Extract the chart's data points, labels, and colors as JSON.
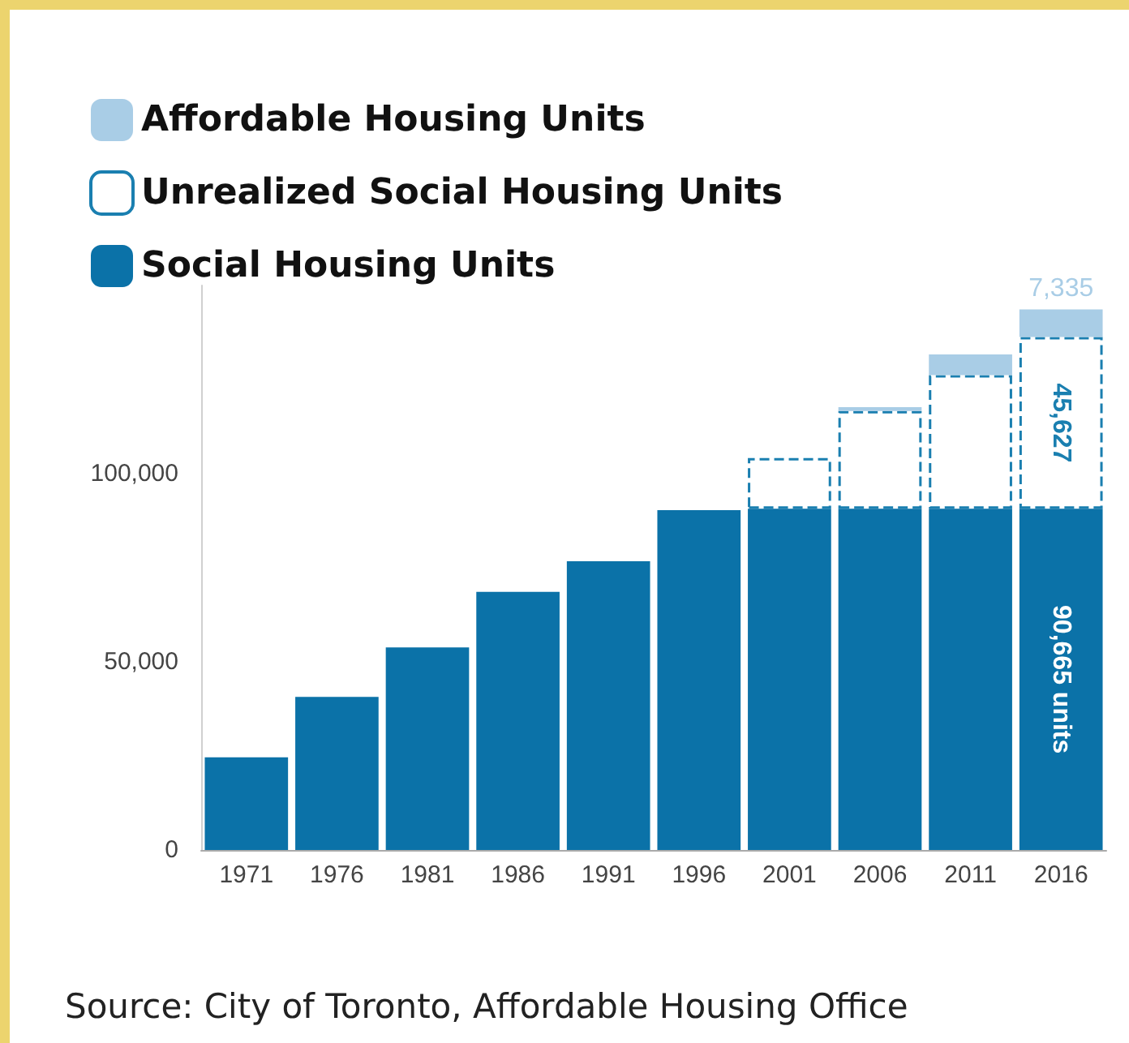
{
  "chart_data": {
    "type": "bar",
    "stacked": true,
    "categories": [
      "1971",
      "1976",
      "1981",
      "1986",
      "1991",
      "1996",
      "2001",
      "2006",
      "2011",
      "2016"
    ],
    "series": [
      {
        "name": "Social Housing Units",
        "color": "#0b72a8",
        "values": [
          24600,
          40700,
          53800,
          68600,
          76700,
          90300,
          90665,
          90665,
          90665,
          90665
        ],
        "value_labels": [
          null,
          null,
          null,
          null,
          null,
          null,
          null,
          null,
          null,
          "90,665 units"
        ]
      },
      {
        "name": "Unrealized Social Housing Units",
        "color": "#1a7fb0",
        "line_style": "dashed",
        "values": [
          null,
          null,
          null,
          null,
          null,
          null,
          13500,
          26000,
          35500,
          45627
        ],
        "value_labels": [
          null,
          null,
          null,
          null,
          null,
          null,
          null,
          null,
          null,
          "45,627"
        ]
      },
      {
        "name": "Affordable Housing Units",
        "color": "#a9cde6",
        "values": [
          null,
          null,
          null,
          null,
          null,
          null,
          null,
          1000,
          5500,
          7335
        ],
        "value_labels": [
          null,
          null,
          null,
          null,
          null,
          null,
          null,
          null,
          null,
          "7,335"
        ]
      }
    ],
    "ylim": [
      0,
      150000
    ],
    "yticks": [
      0,
      {
        "value": 50000,
        "label": "50,000"
      },
      {
        "value": 100000,
        "label": "100,000"
      }
    ],
    "grid": false,
    "legend": "top left",
    "annotations": [
      "Source: City of Toronto, Affordable Housing Office"
    ]
  }
}
